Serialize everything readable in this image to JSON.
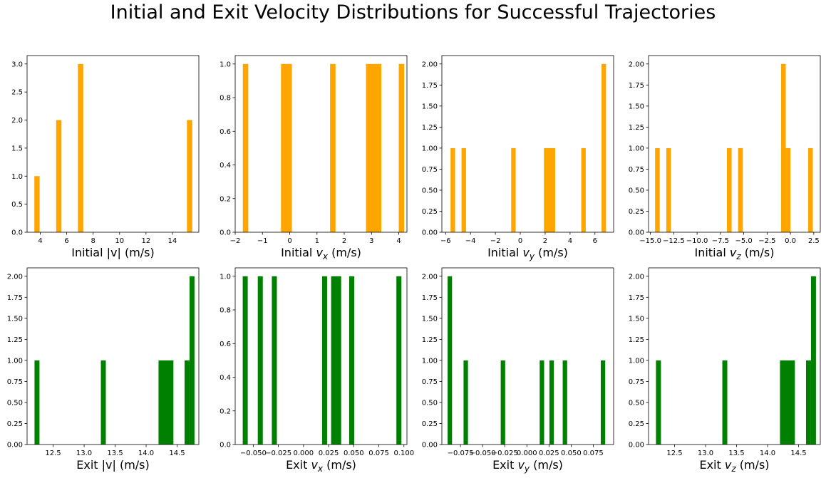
{
  "figure": {
    "title": "Initial and Exit Velocity Distributions for Successful Trajectories"
  },
  "chart_data": [
    {
      "type": "bar",
      "row": 0,
      "col": 0,
      "color": "#ffa500",
      "xlabel": "Initial |v| (m/s)",
      "xlim": [
        3.0,
        16.0
      ],
      "ylim": [
        0,
        3.15
      ],
      "xticks": [
        4,
        6,
        8,
        10,
        12,
        14
      ],
      "xtick_labels": [
        "4",
        "6",
        "8",
        "10",
        "12",
        "14"
      ],
      "yticks": [
        0,
        0.5,
        1,
        1.5,
        2,
        2.5,
        3
      ],
      "ytick_labels": [
        "0.0",
        "0.5",
        "1.0",
        "1.5",
        "2.0",
        "2.5",
        "3.0"
      ],
      "bars": [
        [
          3.55,
          3.95,
          1
        ],
        [
          5.2,
          5.6,
          2
        ],
        [
          6.85,
          7.25,
          3
        ],
        [
          15.1,
          15.5,
          2
        ]
      ]
    },
    {
      "type": "bar",
      "row": 0,
      "col": 1,
      "color": "#ffa500",
      "xlabel": "Initial v_x (m/s)",
      "xlim": [
        -2.0,
        4.3
      ],
      "ylim": [
        0,
        1.05
      ],
      "xticks": [
        -2,
        -1,
        0,
        1,
        2,
        3,
        4
      ],
      "xtick_labels": [
        "−2",
        "−1",
        "0",
        "1",
        "2",
        "3",
        "4"
      ],
      "yticks": [
        0,
        0.2,
        0.4,
        0.6,
        0.8,
        1.0
      ],
      "ytick_labels": [
        "0.0",
        "0.2",
        "0.4",
        "0.6",
        "0.8",
        "1.0"
      ],
      "bars": [
        [
          -1.72,
          -1.52,
          1
        ],
        [
          -0.32,
          0.08,
          1
        ],
        [
          1.48,
          1.68,
          1
        ],
        [
          2.8,
          3.36,
          1
        ],
        [
          4.0,
          4.2,
          1
        ]
      ]
    },
    {
      "type": "bar",
      "row": 0,
      "col": 2,
      "color": "#ffa500",
      "xlabel": "Initial v_y (m/s)",
      "xlim": [
        -6.3,
        7.5
      ],
      "ylim": [
        0,
        2.1
      ],
      "xticks": [
        -6,
        -4,
        -2,
        0,
        2,
        4,
        6
      ],
      "xtick_labels": [
        "−6",
        "−4",
        "−2",
        "0",
        "2",
        "4",
        "6"
      ],
      "yticks": [
        0,
        0.25,
        0.5,
        0.75,
        1.0,
        1.25,
        1.5,
        1.75,
        2.0
      ],
      "ytick_labels": [
        "0.00",
        "0.25",
        "0.50",
        "0.75",
        "1.00",
        "1.25",
        "1.50",
        "1.75",
        "2.00"
      ],
      "bars": [
        [
          -5.6,
          -5.24,
          1
        ],
        [
          -4.72,
          -4.36,
          1
        ],
        [
          -0.73,
          -0.37,
          1
        ],
        [
          1.9,
          2.8,
          1
        ],
        [
          4.9,
          5.26,
          1
        ],
        [
          6.53,
          6.89,
          2
        ]
      ]
    },
    {
      "type": "bar",
      "row": 0,
      "col": 3,
      "color": "#ffa500",
      "xlabel": "Initial v_z (m/s)",
      "xlim": [
        -15.2,
        3.2
      ],
      "ylim": [
        0,
        2.1
      ],
      "xticks": [
        -15,
        -12.5,
        -10,
        -7.5,
        -5,
        -2.5,
        0,
        2.5
      ],
      "xtick_labels": [
        "−15.0",
        "−12.5",
        "−10.0",
        "−7.5",
        "−5.0",
        "−2.5",
        "0.0",
        "2.5"
      ],
      "yticks": [
        0,
        0.25,
        0.5,
        0.75,
        1.0,
        1.25,
        1.5,
        1.75,
        2.0
      ],
      "ytick_labels": [
        "0.00",
        "0.25",
        "0.50",
        "0.75",
        "1.00",
        "1.25",
        "1.50",
        "1.75",
        "2.00"
      ],
      "bars": [
        [
          -14.5,
          -14.0,
          1
        ],
        [
          -13.3,
          -12.8,
          1
        ],
        [
          -6.8,
          -6.3,
          1
        ],
        [
          -5.6,
          -5.1,
          1
        ],
        [
          -1.0,
          -0.5,
          2
        ],
        [
          -0.5,
          0.0,
          1
        ],
        [
          1.9,
          2.4,
          1
        ]
      ]
    },
    {
      "type": "bar",
      "row": 1,
      "col": 0,
      "color": "#008000",
      "xlabel": "Exit |v| (m/s)",
      "xlim": [
        12.08,
        14.85
      ],
      "ylim": [
        0,
        2.1
      ],
      "xticks": [
        12.5,
        13.0,
        13.5,
        14.0,
        14.5
      ],
      "xtick_labels": [
        "12.5",
        "13.0",
        "13.5",
        "14.0",
        "14.5"
      ],
      "yticks": [
        0,
        0.25,
        0.5,
        0.75,
        1.0,
        1.25,
        1.5,
        1.75,
        2.0
      ],
      "ytick_labels": [
        "0.00",
        "0.25",
        "0.50",
        "0.75",
        "1.00",
        "1.25",
        "1.50",
        "1.75",
        "2.00"
      ],
      "bars": [
        [
          12.2,
          12.28,
          1
        ],
        [
          13.27,
          13.35,
          1
        ],
        [
          14.2,
          14.44,
          1
        ],
        [
          14.62,
          14.7,
          1
        ],
        [
          14.7,
          14.78,
          2
        ]
      ]
    },
    {
      "type": "bar",
      "row": 1,
      "col": 1,
      "color": "#008000",
      "xlabel": "Exit v_x (m/s)",
      "xlim": [
        -0.068,
        0.103
      ],
      "ylim": [
        0,
        1.05
      ],
      "xticks": [
        -0.05,
        -0.025,
        0,
        0.025,
        0.05,
        0.075,
        0.1
      ],
      "xtick_labels": [
        "−0.050",
        "−0.025",
        "0.000",
        "0.025",
        "0.050",
        "0.075",
        "0.100"
      ],
      "yticks": [
        0,
        0.2,
        0.4,
        0.6,
        0.8,
        1.0
      ],
      "ytick_labels": [
        "0.0",
        "0.2",
        "0.4",
        "0.6",
        "0.8",
        "1.0"
      ],
      "bars": [
        [
          -0.0605,
          -0.0555,
          1
        ],
        [
          -0.0455,
          -0.0405,
          1
        ],
        [
          -0.0315,
          -0.0265,
          1
        ],
        [
          0.0185,
          0.0235,
          1
        ],
        [
          0.0275,
          0.0375,
          1
        ],
        [
          0.0455,
          0.0505,
          1
        ],
        [
          0.0925,
          0.0975,
          1
        ]
      ]
    },
    {
      "type": "bar",
      "row": 1,
      "col": 2,
      "color": "#008000",
      "xlabel": "Exit v_y (m/s)",
      "xlim": [
        -0.096,
        0.098
      ],
      "ylim": [
        0,
        2.1
      ],
      "xticks": [
        -0.075,
        -0.05,
        -0.025,
        0,
        0.025,
        0.05,
        0.075
      ],
      "xtick_labels": [
        "−0.075",
        "−0.050",
        "−0.025",
        "0.000",
        "0.025",
        "0.050",
        "0.075"
      ],
      "yticks": [
        0,
        0.25,
        0.5,
        0.75,
        1.0,
        1.25,
        1.5,
        1.75,
        2.0
      ],
      "ytick_labels": [
        "0.00",
        "0.25",
        "0.50",
        "0.75",
        "1.00",
        "1.25",
        "1.50",
        "1.75",
        "2.00"
      ],
      "bars": [
        [
          -0.0895,
          -0.0845,
          2
        ],
        [
          -0.0715,
          -0.0665,
          1
        ],
        [
          -0.0295,
          -0.0245,
          1
        ],
        [
          0.0145,
          0.0195,
          1
        ],
        [
          0.0255,
          0.0305,
          1
        ],
        [
          0.0405,
          0.0455,
          1
        ],
        [
          0.0835,
          0.0885,
          1
        ]
      ]
    },
    {
      "type": "bar",
      "row": 1,
      "col": 3,
      "color": "#008000",
      "xlabel": "Exit v_z (m/s)",
      "xlim": [
        12.08,
        14.85
      ],
      "ylim": [
        0,
        2.1
      ],
      "xticks": [
        12.5,
        13.0,
        13.5,
        14.0,
        14.5
      ],
      "xtick_labels": [
        "12.5",
        "13.0",
        "13.5",
        "14.0",
        "14.5"
      ],
      "yticks": [
        0,
        0.25,
        0.5,
        0.75,
        1.0,
        1.25,
        1.5,
        1.75,
        2.0
      ],
      "ytick_labels": [
        "0.00",
        "0.25",
        "0.50",
        "0.75",
        "1.00",
        "1.25",
        "1.50",
        "1.75",
        "2.00"
      ],
      "bars": [
        [
          12.2,
          12.28,
          1
        ],
        [
          13.27,
          13.35,
          1
        ],
        [
          14.2,
          14.44,
          1
        ],
        [
          14.62,
          14.7,
          1
        ],
        [
          14.7,
          14.78,
          2
        ]
      ]
    }
  ]
}
